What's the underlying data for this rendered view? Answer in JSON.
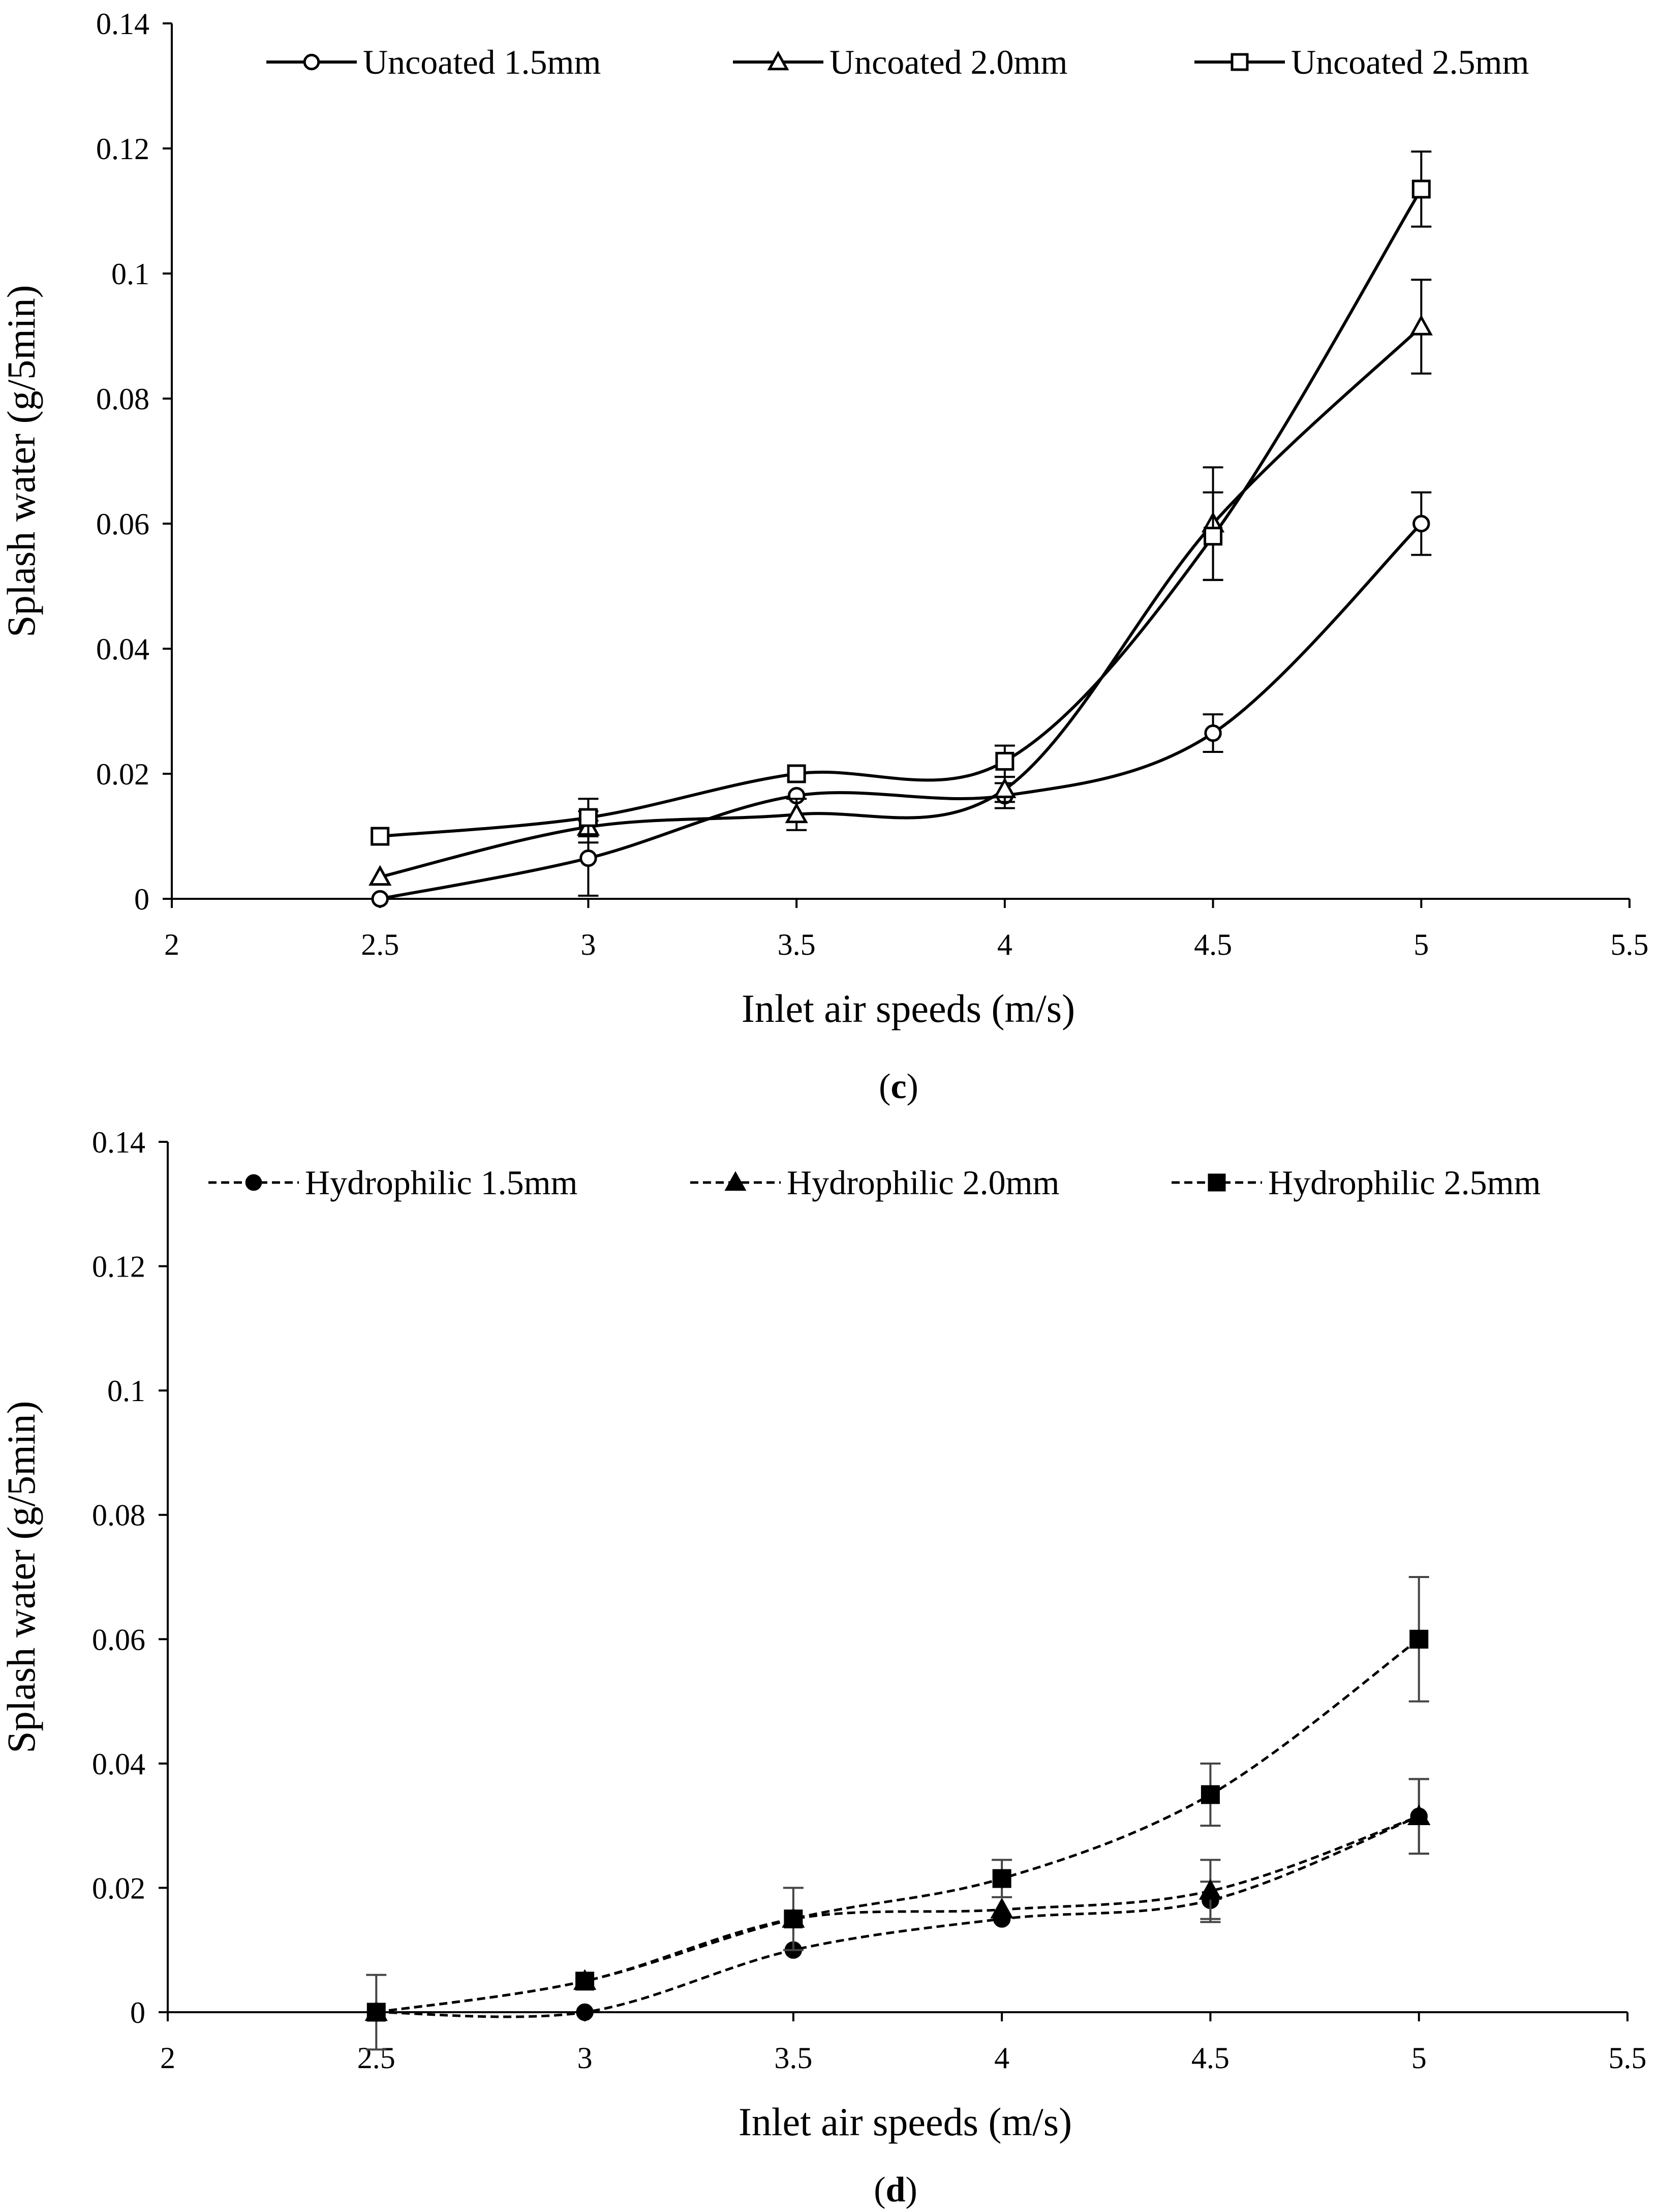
{
  "chart_data": [
    {
      "type": "line",
      "panel_label": "c",
      "xlabel": "Inlet air speeds (m/s)",
      "ylabel": "Splash water (g/5min)",
      "xlim": [
        2,
        5.5
      ],
      "ylim": [
        0,
        0.14
      ],
      "xticks": [
        "2",
        "2.5",
        "3",
        "3.5",
        "4",
        "4.5",
        "5",
        "5.5"
      ],
      "yticks": [
        "0",
        "0.02",
        "0.04",
        "0.06",
        "0.08",
        "0.1",
        "0.12",
        "0.14"
      ],
      "legend_position": "top",
      "series": [
        {
          "name": "Uncoated 1.5mm",
          "marker": "circle",
          "filled": false,
          "dashed": false,
          "x": [
            2.5,
            3,
            3.5,
            4,
            4.5,
            5
          ],
          "y": [
            0.0,
            0.0065,
            0.0165,
            0.0165,
            0.0265,
            0.06
          ],
          "err": [
            0,
            0.006,
            0,
            0.002,
            0.003,
            0.005
          ]
        },
        {
          "name": "Uncoated 2.0mm",
          "marker": "triangle",
          "filled": false,
          "dashed": false,
          "x": [
            2.5,
            3,
            3.5,
            4,
            4.5,
            5
          ],
          "y": [
            0.0035,
            0.0115,
            0.0135,
            0.0175,
            0.06,
            0.0915
          ],
          "err": [
            0,
            0.0025,
            0.0025,
            0.002,
            0.009,
            0.0075
          ]
        },
        {
          "name": "Uncoated 2.5mm",
          "marker": "square",
          "filled": false,
          "dashed": false,
          "x": [
            2.5,
            3,
            3.5,
            4,
            4.5,
            5
          ],
          "y": [
            0.01,
            0.013,
            0.02,
            0.022,
            0.058,
            0.1135
          ],
          "err": [
            0,
            0.003,
            0,
            0.0025,
            0.007,
            0.006
          ]
        }
      ]
    },
    {
      "type": "line",
      "panel_label": "d",
      "xlabel": "Inlet air speeds (m/s)",
      "ylabel": "Splash water (g/5min)",
      "xlim": [
        2,
        5.5
      ],
      "ylim": [
        0,
        0.14
      ],
      "xticks": [
        "2",
        "2.5",
        "3",
        "3.5",
        "4",
        "4.5",
        "5",
        "5.5"
      ],
      "yticks": [
        "0",
        "0.02",
        "0.04",
        "0.06",
        "0.08",
        "0.1",
        "0.12",
        "0.14"
      ],
      "legend_position": "top",
      "series": [
        {
          "name": "Hydrophilic 1.5mm",
          "marker": "circle",
          "filled": true,
          "dashed": true,
          "x": [
            2.5,
            3,
            3.5,
            4,
            4.5,
            5
          ],
          "y": [
            0.0,
            0.0,
            0.01,
            0.015,
            0.018,
            0.0315
          ],
          "err": [
            0,
            0,
            0,
            0,
            0.003,
            0.006
          ]
        },
        {
          "name": "Hydrophilic 2.0mm",
          "marker": "triangle",
          "filled": true,
          "dashed": true,
          "x": [
            2.5,
            3,
            3.5,
            4,
            4.5,
            5
          ],
          "y": [
            0.0,
            0.005,
            0.015,
            0.0165,
            0.0195,
            0.0315
          ],
          "err": [
            0,
            0,
            0,
            0,
            0.005,
            0.006
          ]
        },
        {
          "name": "Hydrophilic 2.5mm",
          "marker": "square",
          "filled": true,
          "dashed": true,
          "x": [
            2.5,
            3,
            3.5,
            4,
            4.5,
            5
          ],
          "y": [
            0.0,
            0.005,
            0.015,
            0.0215,
            0.035,
            0.06
          ],
          "err": [
            0.006,
            0,
            0.005,
            0.003,
            0.005,
            0.01
          ]
        }
      ]
    }
  ]
}
